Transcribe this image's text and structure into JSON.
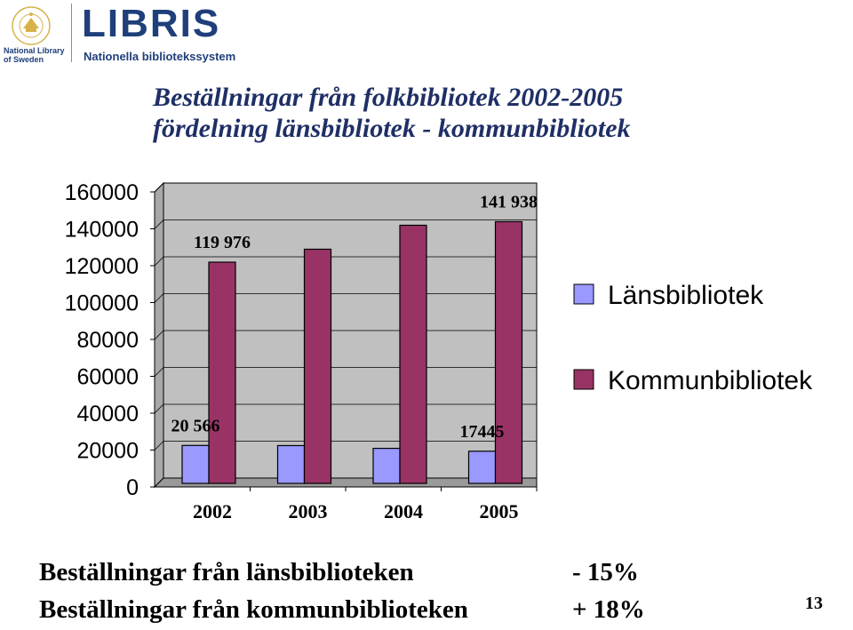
{
  "header": {
    "logo_seal_text": "KUNGL. BIBLIOTEKET",
    "logo_caption": [
      "National Library",
      "of Sweden"
    ],
    "brand_name": "LIBRIS",
    "brand_tagline": "Nationella bibliotekssystem"
  },
  "chart_data": {
    "type": "bar",
    "title": [
      "Beställningar från folkbibliotek 2002-2005",
      "fördelning länsbibliotek - kommunbibliotek"
    ],
    "categories": [
      "2002",
      "2003",
      "2004",
      "2005"
    ],
    "series": [
      {
        "name": "Länsbibliotek",
        "values": [
          20566,
          20500,
          19000,
          17445
        ],
        "color": "#9999ff"
      },
      {
        "name": "Kommunbibliotek",
        "values": [
          119976,
          127000,
          140000,
          141938
        ],
        "color": "#993366"
      }
    ],
    "ylim": [
      0,
      160000
    ],
    "yticks": [
      "160000",
      "140000",
      "120000",
      "100000",
      "80000",
      "60000",
      "40000",
      "20000",
      "0"
    ],
    "data_labels": [
      {
        "text": "119 976",
        "series": 1,
        "index": 0
      },
      {
        "text": "141 938",
        "series": 1,
        "index": 3
      },
      {
        "text": "20 566",
        "series": 0,
        "index": 0
      },
      {
        "text": "17445",
        "series": 0,
        "index": 3
      }
    ],
    "grid": true,
    "plot_background": "#c0c0c0",
    "legend_position": "right"
  },
  "summary": [
    {
      "label": "Beställningar från länsbiblioteken",
      "change": "- 15%"
    },
    {
      "label": "Beställningar från kommunbiblioteken",
      "change": "+ 18%"
    }
  ],
  "page_number": "13"
}
